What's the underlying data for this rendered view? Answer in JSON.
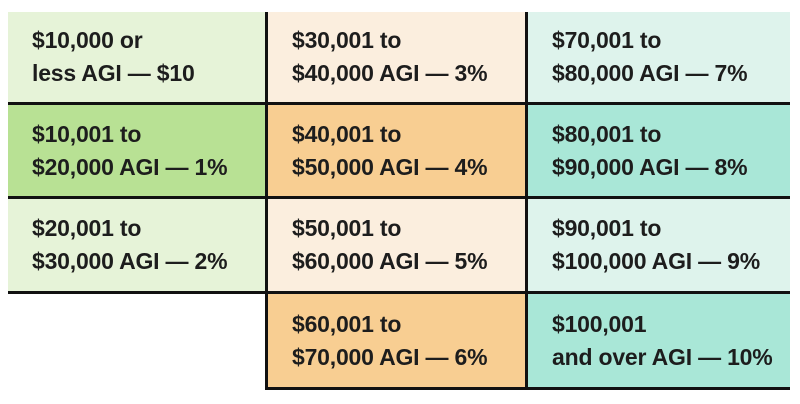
{
  "colors": {
    "light_green": "#e6f3d8",
    "green": "#b8e194",
    "light_peach": "#fbeede",
    "orange": "#f8ce92",
    "light_mint": "#def3ec",
    "teal": "#a9e7d7",
    "divider": "#111111",
    "text": "#1d1d1d"
  },
  "table": {
    "cells": [
      {
        "line1": "$10,000 or",
        "line2": "less AGI — $10",
        "bg": "light_green"
      },
      {
        "line1": "$10,001 to",
        "line2": "$20,000 AGI — 1%",
        "bg": "green"
      },
      {
        "line1": "$20,001 to",
        "line2": "$30,000 AGI — 2%",
        "bg": "light_green"
      },
      {
        "line1": "$30,001 to",
        "line2": "$40,000 AGI — 3%",
        "bg": "light_peach"
      },
      {
        "line1": "$40,001 to",
        "line2": "$50,000 AGI — 4%",
        "bg": "orange"
      },
      {
        "line1": "$50,001 to",
        "line2": "$60,000 AGI — 5%",
        "bg": "light_peach"
      },
      {
        "line1": "$60,001 to",
        "line2": "$70,000 AGI — 6%",
        "bg": "orange"
      },
      {
        "line1": "$70,001 to",
        "line2": "$80,000 AGI — 7%",
        "bg": "light_mint"
      },
      {
        "line1": "$80,001 to",
        "line2": "$90,000 AGI — 8%",
        "bg": "teal"
      },
      {
        "line1": "$90,001 to",
        "line2": "$100,000 AGI — 9%",
        "bg": "light_mint"
      },
      {
        "line1": "$100,001",
        "line2": "and over AGI — 10%",
        "bg": "teal"
      }
    ]
  },
  "chart_data": {
    "type": "table",
    "brackets": [
      {
        "agi_range": "$10,000 or less",
        "tax": "$10"
      },
      {
        "agi_range": "$10,001 to $20,000",
        "tax": "1%"
      },
      {
        "agi_range": "$20,001 to $30,000",
        "tax": "2%"
      },
      {
        "agi_range": "$30,001 to $40,000",
        "tax": "3%"
      },
      {
        "agi_range": "$40,001 to $50,000",
        "tax": "4%"
      },
      {
        "agi_range": "$50,001 to $60,000",
        "tax": "5%"
      },
      {
        "agi_range": "$60,001 to $70,000",
        "tax": "6%"
      },
      {
        "agi_range": "$70,001 to $80,000",
        "tax": "7%"
      },
      {
        "agi_range": "$80,001 to $90,000",
        "tax": "8%"
      },
      {
        "agi_range": "$90,001 to $100,000",
        "tax": "9%"
      },
      {
        "agi_range": "$100,001 and over",
        "tax": "10%"
      }
    ],
    "layout": {
      "columns": 3,
      "rows_per_column": [
        3,
        4,
        4
      ],
      "grid": true,
      "legend_position": "none"
    }
  }
}
